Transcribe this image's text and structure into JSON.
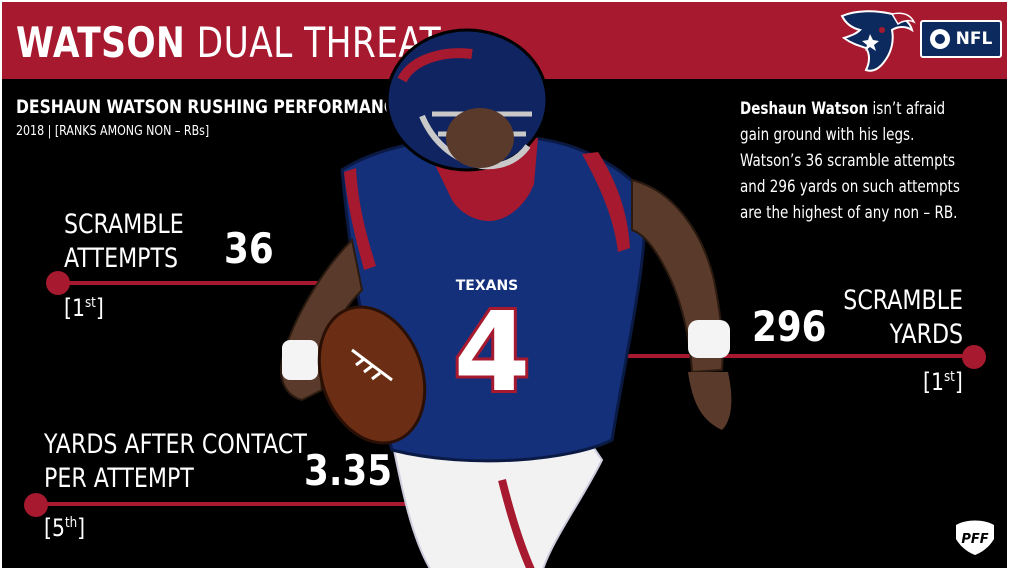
{
  "header": {
    "title_bold": "WATSON",
    "title_light": "DUAL THREAT",
    "team_logo_icon": "texans-bull-icon",
    "network_logo": {
      "icon": "cbs-eye-icon",
      "text": "NFL"
    }
  },
  "subtitle": "DESHAUN WATSON RUSHING PERFORMANCE",
  "subnote": "2018 | [RANKS AMONG NON – RBs]",
  "description": {
    "name": "Deshaun Watson",
    "text": " isn’t afraid gain ground with his legs. Watson’s 36 scramble attempts and 296 yards on such attempts are the highest of any non – RB."
  },
  "player": {
    "jersey_team": "TEXANS",
    "jersey_number": "4"
  },
  "stats": [
    {
      "label_line1": "SCRAMBLE",
      "label_line2": "ATTEMPTS",
      "value": "36",
      "rank_open": "[1",
      "rank_sup": "st",
      "rank_close": "]"
    },
    {
      "label_line1": "SCRAMBLE",
      "label_line2": "YARDS",
      "value": "296",
      "rank_open": "[1",
      "rank_sup": "st",
      "rank_close": "]"
    },
    {
      "label_line1": "YARDS AFTER CONTACT",
      "label_line2": "PER ATTEMPT",
      "value": "3.35",
      "rank_open": "[5",
      "rank_sup": "th",
      "rank_close": "]"
    }
  ],
  "footer_logo": "PFF",
  "colors": {
    "accent": "#a6192e",
    "navy": "#0d2a5e",
    "background": "#000000"
  }
}
